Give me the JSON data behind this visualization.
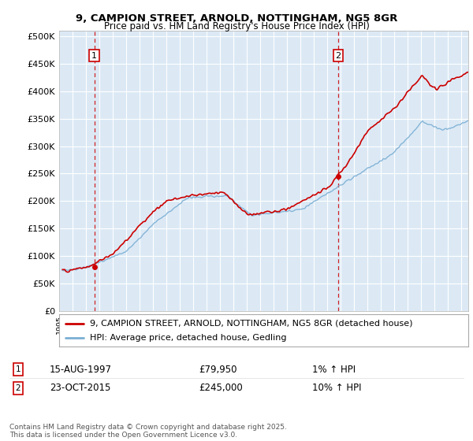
{
  "title_line1": "9, CAMPION STREET, ARNOLD, NOTTINGHAM, NG5 8GR",
  "title_line2": "Price paid vs. HM Land Registry's House Price Index (HPI)",
  "ylabel_ticks": [
    "£0",
    "£50K",
    "£100K",
    "£150K",
    "£200K",
    "£250K",
    "£300K",
    "£350K",
    "£400K",
    "£450K",
    "£500K"
  ],
  "ytick_values": [
    0,
    50000,
    100000,
    150000,
    200000,
    250000,
    300000,
    350000,
    400000,
    450000,
    500000
  ],
  "xlim": [
    1995.3,
    2025.5
  ],
  "ylim": [
    0,
    510000
  ],
  "purchase1_x": 1997.62,
  "purchase1_y": 79950,
  "purchase2_x": 2015.81,
  "purchase2_y": 245000,
  "vline1_x": 1997.62,
  "vline2_x": 2015.81,
  "legend_line1": "9, CAMPION STREET, ARNOLD, NOTTINGHAM, NG5 8GR (detached house)",
  "legend_line2": "HPI: Average price, detached house, Gedling",
  "note1_box": "1",
  "note1_date": "15-AUG-1997",
  "note1_price": "£79,950",
  "note1_hpi": "1% ↑ HPI",
  "note2_box": "2",
  "note2_date": "23-OCT-2015",
  "note2_price": "£245,000",
  "note2_hpi": "10% ↑ HPI",
  "footer": "Contains HM Land Registry data © Crown copyright and database right 2025.\nThis data is licensed under the Open Government Licence v3.0.",
  "line_color_red": "#cc0000",
  "line_color_blue": "#7bafd4",
  "bg_color": "#dce9f5",
  "grid_color": "#ffffff",
  "vline_color": "#cc0000",
  "title_fontsize": 9.5,
  "subtitle_fontsize": 8.5,
  "tick_fontsize": 8,
  "legend_fontsize": 8,
  "table_fontsize": 8.5,
  "footer_fontsize": 6.5
}
